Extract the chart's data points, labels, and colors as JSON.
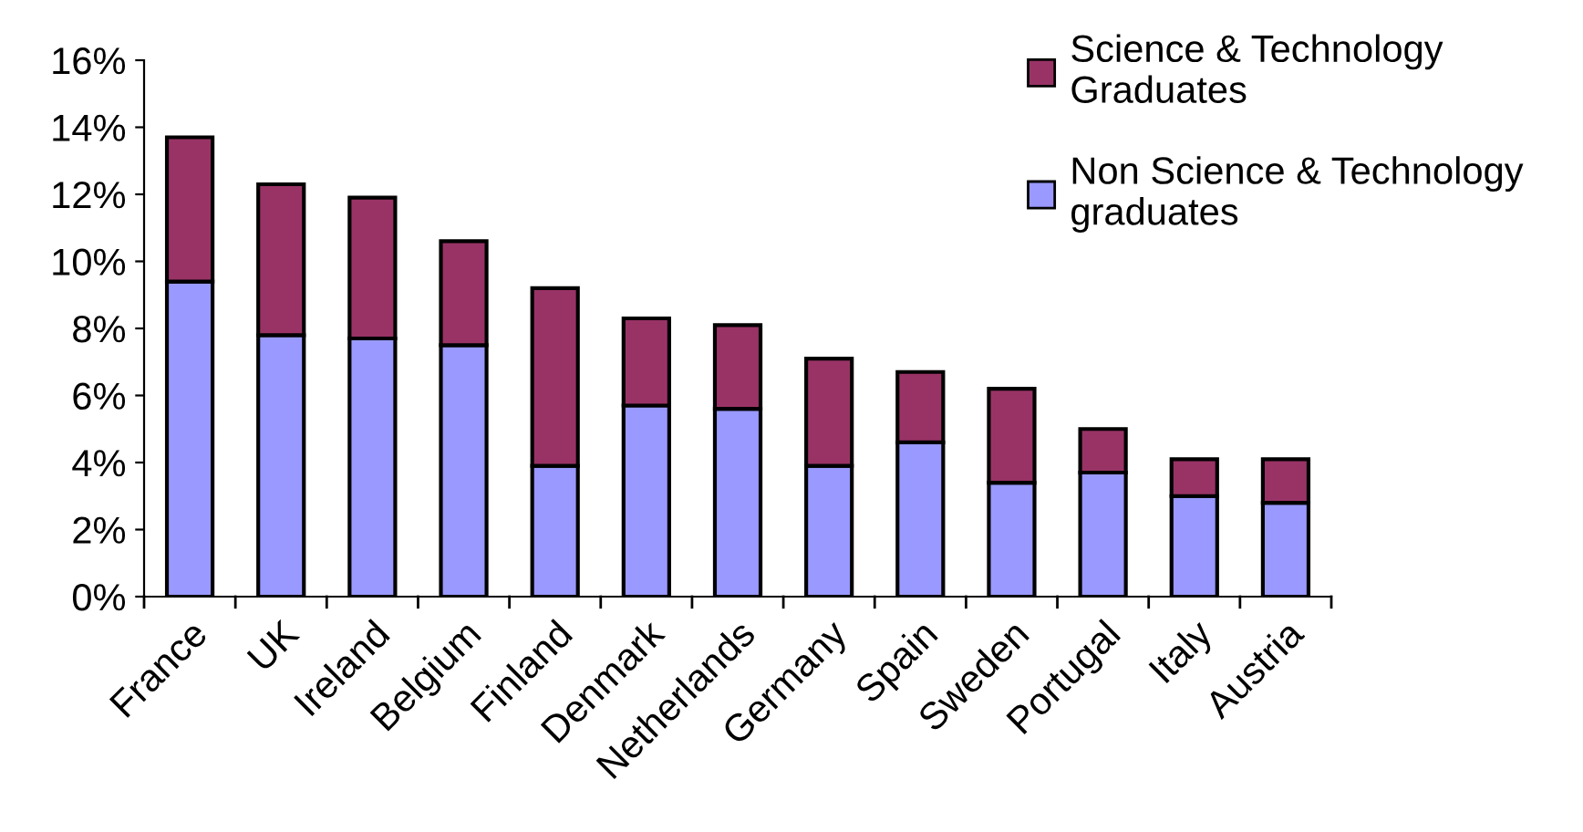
{
  "chart_data": {
    "type": "bar",
    "stacked": true,
    "legend": "top right",
    "grid": false,
    "categories": [
      "France",
      "UK",
      "Ireland",
      "Belgium",
      "Finland",
      "Denmark",
      "Netherlands",
      "Germany",
      "Spain",
      "Sweden",
      "Portugal",
      "Italy",
      "Austria"
    ],
    "series": [
      {
        "name": "Non Science & Technology\ngraduates",
        "color": "#9999ff",
        "values": [
          9.4,
          7.8,
          7.7,
          7.5,
          3.9,
          5.7,
          5.6,
          3.9,
          4.6,
          3.4,
          3.7,
          3.0,
          2.8
        ]
      },
      {
        "name": "Science & Technology\nGraduates",
        "color": "#993366",
        "values": [
          4.3,
          4.5,
          4.2,
          3.1,
          5.3,
          2.6,
          2.5,
          3.2,
          2.1,
          2.8,
          1.3,
          1.1,
          1.3
        ]
      }
    ],
    "ylim": [
      0,
      16
    ],
    "yticks": [
      {
        "value": 0,
        "label": "0%"
      },
      {
        "value": 2,
        "label": "2%"
      },
      {
        "value": 4,
        "label": "4%"
      },
      {
        "value": 6,
        "label": "6%"
      },
      {
        "value": 8,
        "label": "8%"
      },
      {
        "value": 10,
        "label": "10%"
      },
      {
        "value": 12,
        "label": "12%"
      },
      {
        "value": 14,
        "label": "14%"
      },
      {
        "value": 16,
        "label": "16%"
      }
    ]
  }
}
